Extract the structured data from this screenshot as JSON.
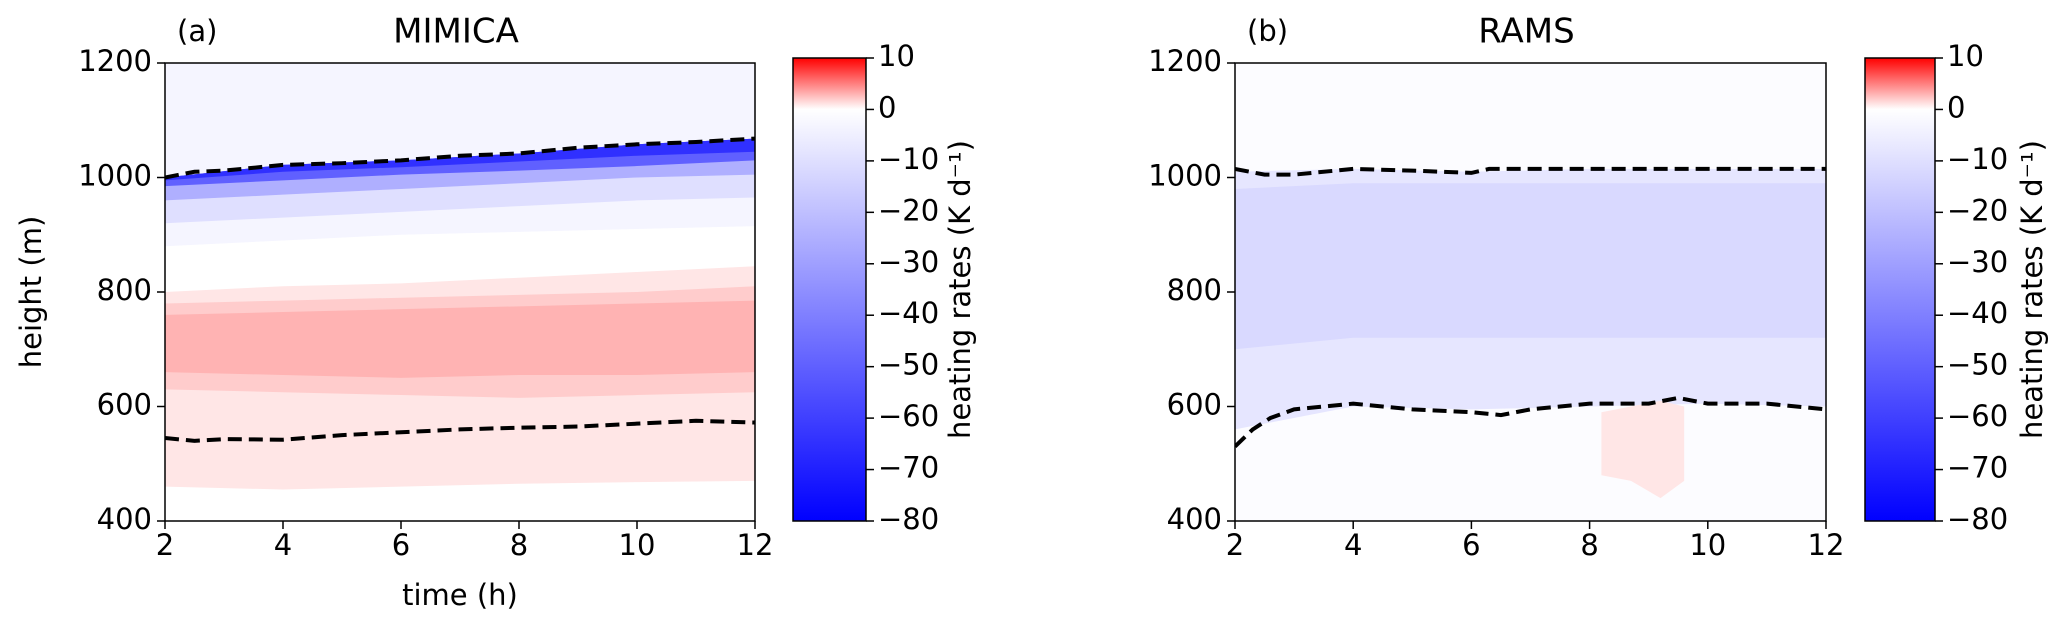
{
  "chart_data": [
    {
      "type": "contour",
      "panel_label": "(a)",
      "title": "MIMICA",
      "xlabel": "time (h)",
      "ylabel": "height (m)",
      "xlim": [
        2,
        12
      ],
      "ylim": [
        400,
        1200
      ],
      "xticks": [
        2,
        4,
        6,
        8,
        10,
        12
      ],
      "yticks": [
        400,
        600,
        800,
        1000,
        1200
      ],
      "colorbar": {
        "label": "heating rates (K d⁻¹)",
        "lim": [
          -80,
          10
        ],
        "ticks": [
          {
            "value": 10,
            "label": "10"
          },
          {
            "value": 0,
            "label": "0"
          },
          {
            "value": -10,
            "label": "−10"
          },
          {
            "value": -20,
            "label": "−20"
          },
          {
            "value": -30,
            "label": "−30"
          },
          {
            "value": -40,
            "label": "−40"
          },
          {
            "value": -50,
            "label": "−50"
          },
          {
            "value": -60,
            "label": "−60"
          },
          {
            "value": -70,
            "label": "−70"
          },
          {
            "value": -80,
            "label": "−80"
          }
        ]
      },
      "bands": [
        {
          "value": -3,
          "x": [
            2,
            4,
            6,
            8,
            10,
            12
          ],
          "lower": [
            880,
            890,
            900,
            905,
            910,
            915
          ],
          "upper": [
            1200,
            1200,
            1200,
            1200,
            1200,
            1200
          ]
        },
        {
          "value": -10,
          "x": [
            2,
            4,
            6,
            8,
            10,
            12
          ],
          "lower": [
            920,
            930,
            940,
            950,
            960,
            965
          ],
          "upper": [
            1000,
            1022,
            1030,
            1042,
            1058,
            1068
          ]
        },
        {
          "value": -25,
          "x": [
            2,
            4,
            6,
            8,
            10,
            12
          ],
          "lower": [
            960,
            970,
            980,
            990,
            1000,
            1005
          ],
          "upper": [
            1000,
            1022,
            1030,
            1042,
            1058,
            1068
          ]
        },
        {
          "value": -50,
          "x": [
            2,
            4,
            6,
            8,
            10,
            12
          ],
          "lower": [
            985,
            995,
            1005,
            1012,
            1020,
            1030
          ],
          "upper": [
            1000,
            1022,
            1030,
            1042,
            1058,
            1068
          ]
        },
        {
          "value": -65,
          "x": [
            2,
            4,
            6,
            8,
            10,
            12
          ],
          "lower": [
            995,
            1010,
            1018,
            1028,
            1038,
            1045
          ],
          "upper": [
            1000,
            1022,
            1030,
            1042,
            1058,
            1068
          ]
        },
        {
          "value": 1,
          "x": [
            2,
            4,
            6,
            8,
            10,
            12
          ],
          "lower": [
            460,
            455,
            460,
            465,
            468,
            470
          ],
          "upper": [
            800,
            810,
            815,
            825,
            835,
            845
          ]
        },
        {
          "value": 2,
          "x": [
            2,
            4,
            6,
            8,
            10,
            12
          ],
          "lower": [
            630,
            625,
            620,
            615,
            620,
            625
          ],
          "upper": [
            780,
            785,
            790,
            795,
            800,
            810
          ]
        },
        {
          "value": 3,
          "x": [
            2,
            4,
            6,
            8,
            10,
            12
          ],
          "lower": [
            660,
            655,
            650,
            655,
            655,
            660
          ],
          "upper": [
            760,
            765,
            770,
            775,
            780,
            785
          ]
        }
      ],
      "series": [
        {
          "color": "#000000",
          "x": [
            2,
            2.5,
            3,
            4,
            5,
            6,
            7,
            8,
            9,
            10,
            11,
            12
          ],
          "values": [
            1000,
            1010,
            1012,
            1022,
            1025,
            1030,
            1038,
            1042,
            1052,
            1058,
            1062,
            1068
          ]
        },
        {
          "color": "#000000",
          "x": [
            2,
            2.5,
            3,
            4,
            5,
            6,
            7,
            8,
            9,
            10,
            11,
            12
          ],
          "values": [
            545,
            540,
            543,
            542,
            550,
            555,
            560,
            563,
            565,
            570,
            575,
            572
          ]
        }
      ]
    },
    {
      "type": "contour",
      "panel_label": "(b)",
      "title": "RAMS",
      "xlim": [
        2,
        12
      ],
      "ylim": [
        400,
        1200
      ],
      "xticks": [
        2,
        4,
        6,
        8,
        10,
        12
      ],
      "yticks": [
        400,
        600,
        800,
        1000,
        1200
      ],
      "colorbar": {
        "label": "heating rates (K d⁻¹)",
        "lim": [
          -80,
          10
        ],
        "ticks": [
          {
            "value": 10,
            "label": "10"
          },
          {
            "value": 0,
            "label": "0"
          },
          {
            "value": -10,
            "label": "−10"
          },
          {
            "value": -20,
            "label": "−20"
          },
          {
            "value": -30,
            "label": "−30"
          },
          {
            "value": -40,
            "label": "−40"
          },
          {
            "value": -50,
            "label": "−50"
          },
          {
            "value": -60,
            "label": "−60"
          },
          {
            "value": -70,
            "label": "−70"
          },
          {
            "value": -80,
            "label": "−80"
          }
        ]
      },
      "bands": [
        {
          "value": -1,
          "x": [
            2,
            4,
            6,
            8,
            10,
            12
          ],
          "lower": [
            400,
            400,
            400,
            400,
            400,
            400
          ],
          "upper": [
            1200,
            1200,
            1200,
            1200,
            1200,
            1200
          ]
        },
        {
          "value": -8,
          "x": [
            2,
            4,
            6,
            8,
            10,
            12
          ],
          "lower": [
            560,
            600,
            595,
            600,
            605,
            600
          ],
          "upper": [
            1010,
            1015,
            1010,
            1015,
            1015,
            1015
          ]
        },
        {
          "value": -12,
          "x": [
            2,
            4,
            6,
            8,
            10,
            12
          ],
          "lower": [
            700,
            720,
            720,
            720,
            720,
            720
          ],
          "upper": [
            980,
            990,
            990,
            990,
            990,
            990
          ]
        },
        {
          "value": 1,
          "x": [
            8.2,
            8.7,
            9.2,
            9.6
          ],
          "lower": [
            480,
            470,
            440,
            470
          ],
          "upper": [
            590,
            600,
            610,
            600
          ]
        }
      ],
      "series": [
        {
          "color": "#000000",
          "x": [
            2,
            2.5,
            3,
            4,
            5,
            6,
            6.3,
            7,
            8,
            9,
            10,
            12
          ],
          "values": [
            1015,
            1005,
            1005,
            1015,
            1012,
            1008,
            1015,
            1015,
            1015,
            1015,
            1015,
            1015
          ]
        },
        {
          "color": "#000000",
          "x": [
            2,
            2.3,
            2.6,
            3,
            3.5,
            4,
            5,
            6,
            6.5,
            7,
            8,
            9,
            9.5,
            10,
            11,
            12
          ],
          "values": [
            530,
            560,
            580,
            595,
            600,
            605,
            595,
            590,
            585,
            595,
            605,
            605,
            615,
            605,
            605,
            595
          ]
        }
      ]
    }
  ]
}
